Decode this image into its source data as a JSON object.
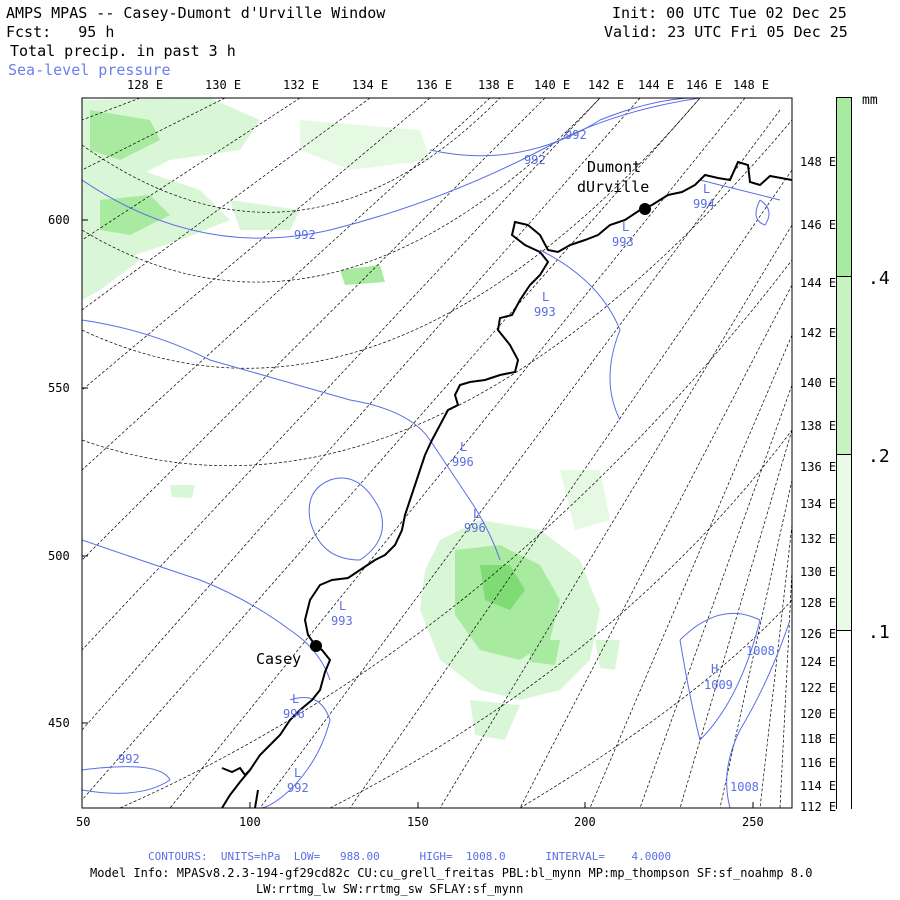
{
  "header": {
    "title": "AMPS MPAS -- Casey-Dumont d'Urville Window",
    "init": "Init: 00 UTC Tue 02 Dec 25",
    "fcst": "Fcst:   95 h",
    "valid": "Valid: 23 UTC Fri 05 Dec 25",
    "field": "Total precip. in past 3 h",
    "overlay": "Sea-level pressure"
  },
  "colors": {
    "coast": "#000000",
    "isobar": "#5a6ee6",
    "precip_light": "#d9f7d6",
    "precip_mid": "#a8eaa0",
    "precip_dark": "#7fdc74",
    "grid": "#000000"
  },
  "lon_labels_top": [
    "128 E",
    "130 E",
    "132 E",
    "134 E",
    "136 E",
    "138 E",
    "140 E",
    "142 E",
    "144 E",
    "146 E",
    "148 E"
  ],
  "lon_labels_right": [
    "148 E",
    "146 E",
    "144 E",
    "142 E",
    "140 E",
    "138 E",
    "136 E",
    "134 E",
    "132 E",
    "130 E",
    "128 E",
    "126 E",
    "124 E",
    "122 E",
    "120 E",
    "118 E",
    "116 E",
    "114 E",
    "112 E"
  ],
  "y_axis": [
    "600",
    "550",
    "500",
    "450"
  ],
  "x_axis": [
    "50",
    "100",
    "150",
    "200",
    "250"
  ],
  "colorbar": {
    "unit": "mm",
    "labels": [
      ".4",
      ".2",
      ".1"
    ]
  },
  "stations": [
    {
      "name_line1": "Dumont",
      "name_line2": "dUrville"
    },
    {
      "name_line1": "Casey"
    }
  ],
  "contour_labels": [
    {
      "text": "992"
    },
    {
      "text": "992"
    },
    {
      "text": "992"
    },
    {
      "text": "993"
    },
    {
      "text": "993"
    },
    {
      "text": "994"
    },
    {
      "text": "996"
    },
    {
      "text": "996"
    },
    {
      "text": "993"
    },
    {
      "text": "996"
    },
    {
      "text": "992"
    },
    {
      "text": "992"
    },
    {
      "text": "1008"
    },
    {
      "text": "1009"
    },
    {
      "text": "1008"
    }
  ],
  "pressure_centers": [
    "L",
    "L",
    "L",
    "L",
    "L",
    "L",
    "L",
    "L",
    "H"
  ],
  "footer": {
    "contours": "CONTOURS:  UNITS=hPa  LOW=   988.00      HIGH=  1008.0      INTERVAL=    4.0000",
    "model_info": "Model Info: MPASv8.2.3-194-gf29cd82c CU:cu_grell_freitas PBL:bl_mynn MP:mp_thompson SF:sf_noahmp 8.0",
    "model_info2": "LW:rrtmg_lw SW:rrtmg_sw SFLAY:sf_mynn"
  }
}
